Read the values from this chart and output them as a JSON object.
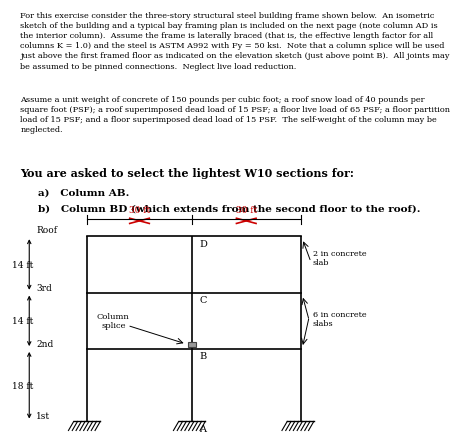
{
  "para1": "For this exercise consider the three-story structural steel building frame shown below.  An isometric\nsketch of the building and a typical bay framing plan is included on the next page (note column AD is\nthe interior column).  Assume the frame is laterally braced (that is, the effective length factor for all\ncolumns K = 1.0) and the steel is ASTM A992 with Fy = 50 ksi.  Note that a column splice will be used\njust above the first framed floor as indicated on the elevation sketch (just above point B).  All joints may\nbe assumed to be pinned connections.  Neglect live load reduction.",
  "para2": "Assume a unit weight of concrete of 150 pounds per cubic foot; a roof snow load of 40 pounds per\nsquare foot (PSF); a roof superimposed dead load of 15 PSF; a floor live load of 65 PSF; a floor partition\nload of 15 PSF; and a floor superimposed dead load of 15 PSF.  The self-weight of the column may be\nneglected.",
  "bold_line": "You are asked to select the lightest W10 sections for:",
  "item_a": "a)   Column AB.",
  "item_b": "b)   Column BD (which extends from the second floor to the roof).",
  "dim_30ft_1": "30 ft",
  "dim_30ft_2": "30 ft",
  "floor_labels": [
    "Roof",
    "3rd",
    "2nd",
    "1st"
  ],
  "height_labels": [
    "14 ft",
    "14 ft",
    "18 ft"
  ],
  "point_labels": [
    "D",
    "C",
    "B",
    "A"
  ],
  "col_splice_label": "Column\nsplice",
  "concrete_slab_1": "2 in concrete\nslab",
  "concrete_slab_2": "6 in concrete\nslabs",
  "frame_color": "#000000",
  "dim_color": "#cc0000",
  "background": "#ffffff",
  "text_color": "#000000"
}
